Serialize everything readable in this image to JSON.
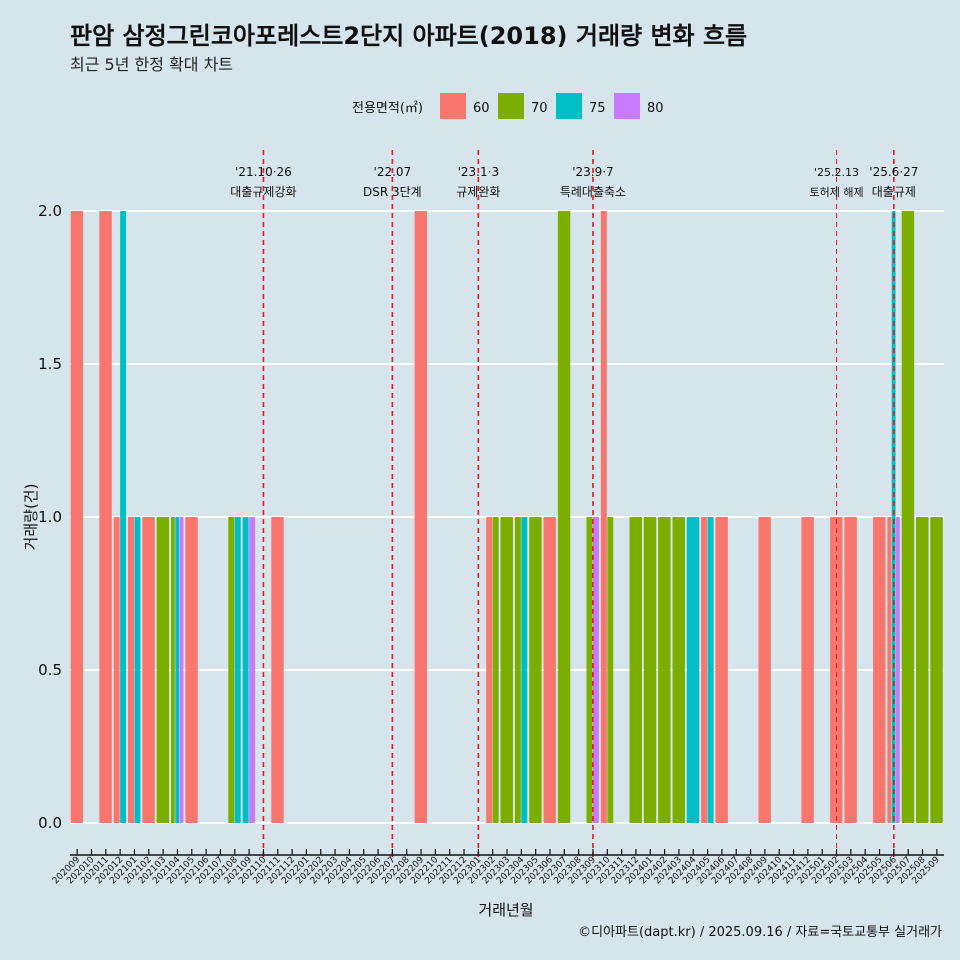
{
  "chart_data": {
    "type": "bar",
    "title": "판암 삼정그린코아포레스트2단지 아파트(2018) 거래량 변화 흐름",
    "subtitle": "최근 5년 한정 확대 차트",
    "xlabel": "거래년월",
    "ylabel": "거래량(건)",
    "ylim": [
      0,
      2
    ],
    "yticks": [
      "0.0",
      "0.5",
      "1.0",
      "1.5",
      "2.0"
    ],
    "legend": {
      "title": "전용면적(㎡)",
      "position": "top",
      "items": [
        {
          "name": "60",
          "color": "#f8766d"
        },
        {
          "name": "70",
          "color": "#7cae00"
        },
        {
          "name": "75",
          "color": "#00bfc4"
        },
        {
          "name": "80",
          "color": "#c77cff"
        }
      ]
    },
    "categories": [
      "202009",
      "202010",
      "202011",
      "202012",
      "202101",
      "202102",
      "202103",
      "202104",
      "202105",
      "202106",
      "202107",
      "202108",
      "202109",
      "202110",
      "202111",
      "202112",
      "202201",
      "202202",
      "202203",
      "202204",
      "202205",
      "202206",
      "202207",
      "202208",
      "202209",
      "202210",
      "202211",
      "202212",
      "202301",
      "202302",
      "202303",
      "202304",
      "202305",
      "202306",
      "202307",
      "202308",
      "202309",
      "202310",
      "202311",
      "202312",
      "202401",
      "202402",
      "202403",
      "202404",
      "202405",
      "202406",
      "202407",
      "202408",
      "202409",
      "202410",
      "202411",
      "202412",
      "202501",
      "202502",
      "202503",
      "202504",
      "202505",
      "202506",
      "202507",
      "202508",
      "202509"
    ],
    "series": [
      {
        "name": "60",
        "values": [
          2,
          0,
          2,
          1,
          1,
          1,
          0,
          0,
          1,
          0,
          0,
          0,
          0,
          0,
          1,
          0,
          0,
          0,
          0,
          0,
          0,
          0,
          0,
          0,
          2,
          0,
          0,
          0,
          0,
          1,
          0,
          0,
          0,
          1,
          0,
          0,
          0,
          2,
          0,
          0,
          0,
          0,
          0,
          0,
          1,
          1,
          0,
          0,
          1,
          0,
          0,
          1,
          0,
          1,
          1,
          0,
          1,
          1,
          0,
          0,
          0
        ]
      },
      {
        "name": "70",
        "values": [
          0,
          0,
          0,
          0,
          0,
          0,
          1,
          1,
          0,
          0,
          0,
          1,
          0,
          0,
          0,
          0,
          0,
          0,
          0,
          0,
          0,
          0,
          0,
          0,
          0,
          0,
          0,
          0,
          0,
          1,
          1,
          1,
          1,
          0,
          2,
          0,
          1,
          1,
          0,
          1,
          1,
          1,
          1,
          0,
          0,
          0,
          0,
          0,
          0,
          0,
          0,
          0,
          0,
          0,
          0,
          0,
          0,
          0,
          2,
          1,
          1
        ]
      },
      {
        "name": "75",
        "values": [
          0,
          0,
          0,
          2,
          1,
          0,
          0,
          1,
          0,
          0,
          0,
          1,
          1,
          0,
          0,
          0,
          0,
          0,
          0,
          0,
          0,
          0,
          0,
          0,
          0,
          0,
          0,
          0,
          0,
          0,
          0,
          1,
          0,
          0,
          0,
          0,
          0,
          0,
          0,
          0,
          0,
          0,
          0,
          1,
          1,
          0,
          0,
          0,
          0,
          0,
          0,
          0,
          0,
          0,
          0,
          0,
          0,
          2,
          0,
          0,
          0
        ]
      },
      {
        "name": "80",
        "values": [
          0,
          0,
          0,
          0,
          0,
          0,
          0,
          1,
          0,
          0,
          0,
          0,
          1,
          0,
          0,
          0,
          0,
          0,
          0,
          0,
          0,
          0,
          0,
          0,
          0,
          0,
          0,
          0,
          0,
          0,
          0,
          0,
          0,
          0,
          0,
          0,
          1,
          0,
          0,
          0,
          0,
          0,
          0,
          0,
          0,
          0,
          0,
          0,
          0,
          0,
          0,
          0,
          0,
          0,
          0,
          0,
          0,
          1,
          0,
          0,
          0
        ]
      }
    ],
    "annotations": [
      {
        "at": "202110",
        "date": "'21.10·26",
        "label": "대출규제강화",
        "small": false
      },
      {
        "at": "202207",
        "date": "'22.07",
        "label": "DSR 3단계",
        "small": false
      },
      {
        "at": "202301",
        "date": "'23.1·3",
        "label": "규제완화",
        "small": false
      },
      {
        "at": "202309",
        "date": "'23.9·7",
        "label": "특례대출축소",
        "small": false
      },
      {
        "at": "202502",
        "date": "'25.2.13",
        "label": "토허제 해제",
        "small": true
      },
      {
        "at": "202506",
        "date": "'25.6·27",
        "label": "대출규제",
        "small": false
      }
    ],
    "grid": "horizontal",
    "caption": "©디아파트(dapt.kr) / 2025.09.16 / 자료=국토교통부 실거래가"
  }
}
